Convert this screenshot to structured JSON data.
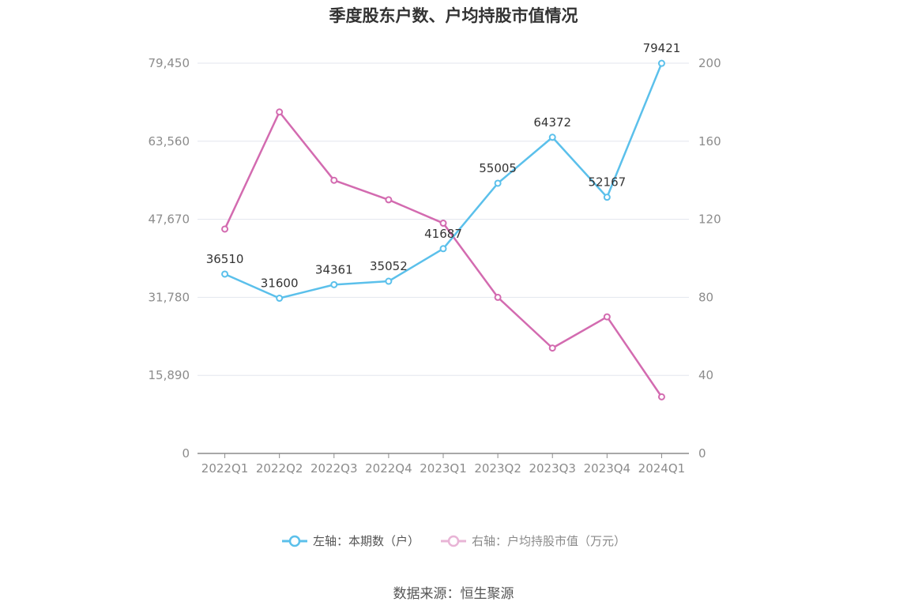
{
  "chart_data": {
    "type": "line",
    "title": "季度股东户数、户均持股市值情况",
    "categories": [
      "2022Q1",
      "2022Q2",
      "2022Q3",
      "2022Q4",
      "2023Q1",
      "2023Q2",
      "2023Q3",
      "2023Q4",
      "2024Q1"
    ],
    "left_axis": {
      "ticks": [
        "0",
        "15,890",
        "31,780",
        "47,670",
        "63,560",
        "79,450"
      ],
      "min": 0,
      "max": 79450
    },
    "right_axis": {
      "ticks": [
        "0",
        "40",
        "80",
        "120",
        "160",
        "200"
      ],
      "min": 0,
      "max": 200
    },
    "grid": true,
    "legend_position": "bottom",
    "series": [
      {
        "name": "左轴：本期数（户）",
        "axis": "left",
        "color": "#5bc0eb",
        "values": [
          36510,
          31600,
          34361,
          35052,
          41687,
          55005,
          64372,
          52167,
          79421
        ],
        "labels": [
          "36510",
          "31600",
          "34361",
          "35052",
          "41687",
          "55005",
          "64372",
          "52167",
          "79421"
        ]
      },
      {
        "name": "右轴：户均持股市值（万元）",
        "axis": "right",
        "color": "#d36bb0",
        "values": [
          115,
          175,
          140,
          130,
          118,
          80,
          54,
          70,
          29
        ]
      }
    ]
  },
  "source": "数据来源：恒生聚源"
}
